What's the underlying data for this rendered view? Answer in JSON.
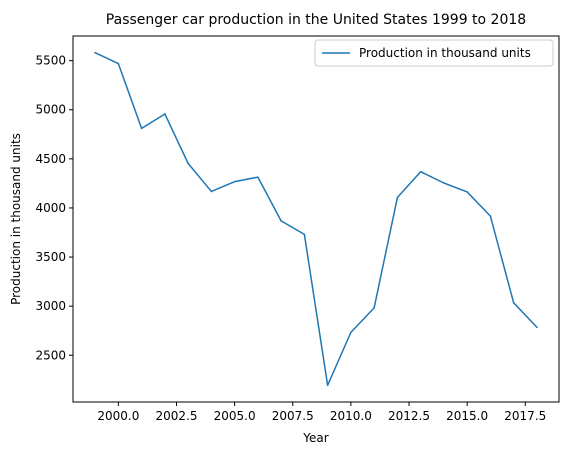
{
  "chart_data": {
    "type": "line",
    "title": "Passenger car production in the United States 1999 to 2018",
    "xlabel": "Year",
    "ylabel": "Production in thousand units",
    "x": [
      1999,
      2000,
      2001,
      2002,
      2003,
      2004,
      2005,
      2006,
      2007,
      2008,
      2009,
      2010,
      2011,
      2012,
      2013,
      2014,
      2015,
      2016,
      2017,
      2018
    ],
    "series": [
      {
        "name": "Production in thousand units",
        "color": "#1f77b4",
        "values": [
          5581,
          5470,
          4810,
          4957,
          4454,
          4168,
          4268,
          4314,
          3868,
          3731,
          2194,
          2733,
          2982,
          4106,
          4369,
          4254,
          4163,
          3917,
          3034,
          2785
        ]
      }
    ],
    "xlim": [
      1998.05,
      2018.95
    ],
    "ylim": [
      2024,
      5751
    ],
    "x_ticks": [
      2000,
      2002.5,
      2005,
      2007.5,
      2010,
      2012.5,
      2015,
      2017.5
    ],
    "x_tick_labels": [
      "2000.0",
      "2002.5",
      "2005.0",
      "2007.5",
      "2010.0",
      "2012.5",
      "2015.0",
      "2017.5"
    ],
    "y_ticks": [
      2500,
      3000,
      3500,
      4000,
      4500,
      5000,
      5500
    ],
    "y_tick_labels": [
      "2500",
      "3000",
      "3500",
      "4000",
      "4500",
      "5000",
      "5500"
    ],
    "grid": false,
    "legend_position": "top-right"
  }
}
